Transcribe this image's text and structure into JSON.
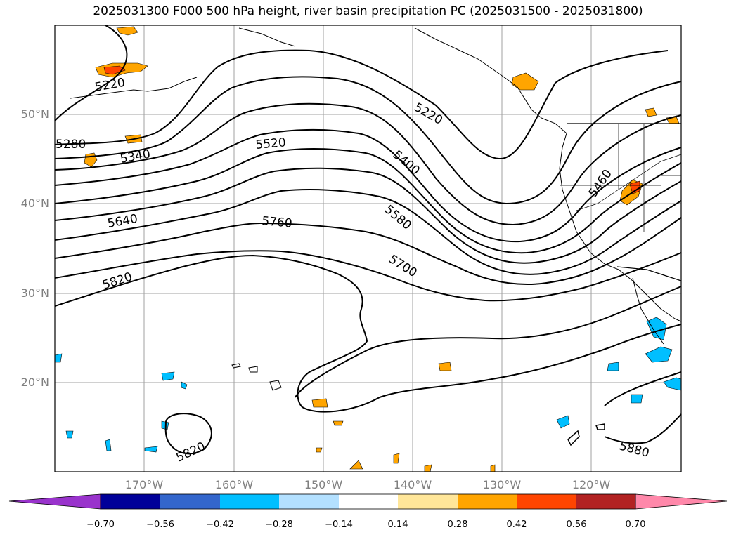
{
  "title": "2025031300 F000 500 hPa height, river basin precipitation PC (2025031500 - 2025031800)",
  "lat_labels": [
    "50°N",
    "40°N",
    "30°N",
    "20°N"
  ],
  "lon_labels": [
    "170°W",
    "160°W",
    "150°W",
    "140°W",
    "130°W",
    "120°W"
  ],
  "colorbar": {
    "ticks": [
      "−0.70",
      "−0.56",
      "−0.42",
      "−0.28",
      "−0.14",
      "0.14",
      "0.28",
      "0.42",
      "0.56",
      "0.70"
    ],
    "colors": [
      "#9933cc",
      "#000099",
      "#3366cc",
      "#00bfff",
      "#b3e0ff",
      "#ffffff",
      "#ffe699",
      "#ffa500",
      "#ff4500",
      "#b22222",
      "#ff88aa"
    ]
  },
  "contour_labels": [
    "5220",
    "5280",
    "5340",
    "5520",
    "5220",
    "5400",
    "5640",
    "5760",
    "5580",
    "5460",
    "5820",
    "5700",
    "5820",
    "5880"
  ],
  "colors": {
    "grid": "#a0a0a0",
    "positive_orange": "#ffa500",
    "positive_red": "#ff4500",
    "positive_yellow": "#ffe699",
    "negative_blue": "#00bfff",
    "negative_light": "#b3e0ff"
  }
}
